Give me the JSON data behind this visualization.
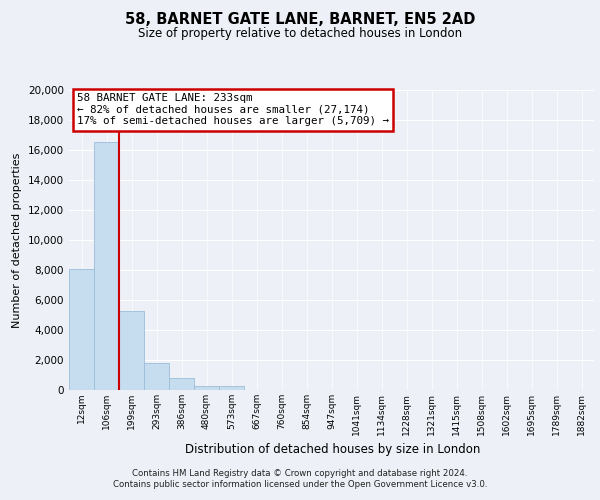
{
  "title": "58, BARNET GATE LANE, BARNET, EN5 2AD",
  "subtitle": "Size of property relative to detached houses in London",
  "xlabel": "Distribution of detached houses by size in London",
  "ylabel": "Number of detached properties",
  "bar_labels": [
    "12sqm",
    "106sqm",
    "199sqm",
    "293sqm",
    "386sqm",
    "480sqm",
    "573sqm",
    "667sqm",
    "760sqm",
    "854sqm",
    "947sqm",
    "1041sqm",
    "1134sqm",
    "1228sqm",
    "1321sqm",
    "1415sqm",
    "1508sqm",
    "1602sqm",
    "1695sqm",
    "1789sqm",
    "1882sqm"
  ],
  "bar_heights": [
    8100,
    16500,
    5300,
    1800,
    780,
    300,
    270,
    0,
    0,
    0,
    0,
    0,
    0,
    0,
    0,
    0,
    0,
    0,
    0,
    0,
    0
  ],
  "bar_color": "#c6dcef",
  "bar_edge_color": "#9bbdd8",
  "ylim": [
    0,
    20000
  ],
  "yticks": [
    0,
    2000,
    4000,
    6000,
    8000,
    10000,
    12000,
    14000,
    16000,
    18000,
    20000
  ],
  "property_line_color": "#cc0000",
  "annotation_title": "58 BARNET GATE LANE: 233sqm",
  "annotation_line1": "← 82% of detached houses are smaller (27,174)",
  "annotation_line2": "17% of semi-detached houses are larger (5,709) →",
  "annotation_box_color": "#ffffff",
  "annotation_box_edge": "#cc0000",
  "background_color": "#edf1f7",
  "plot_bg_color": "#edf1f7",
  "grid_color": "#ffffff",
  "footer_line1": "Contains HM Land Registry data © Crown copyright and database right 2024.",
  "footer_line2": "Contains public sector information licensed under the Open Government Licence v3.0."
}
